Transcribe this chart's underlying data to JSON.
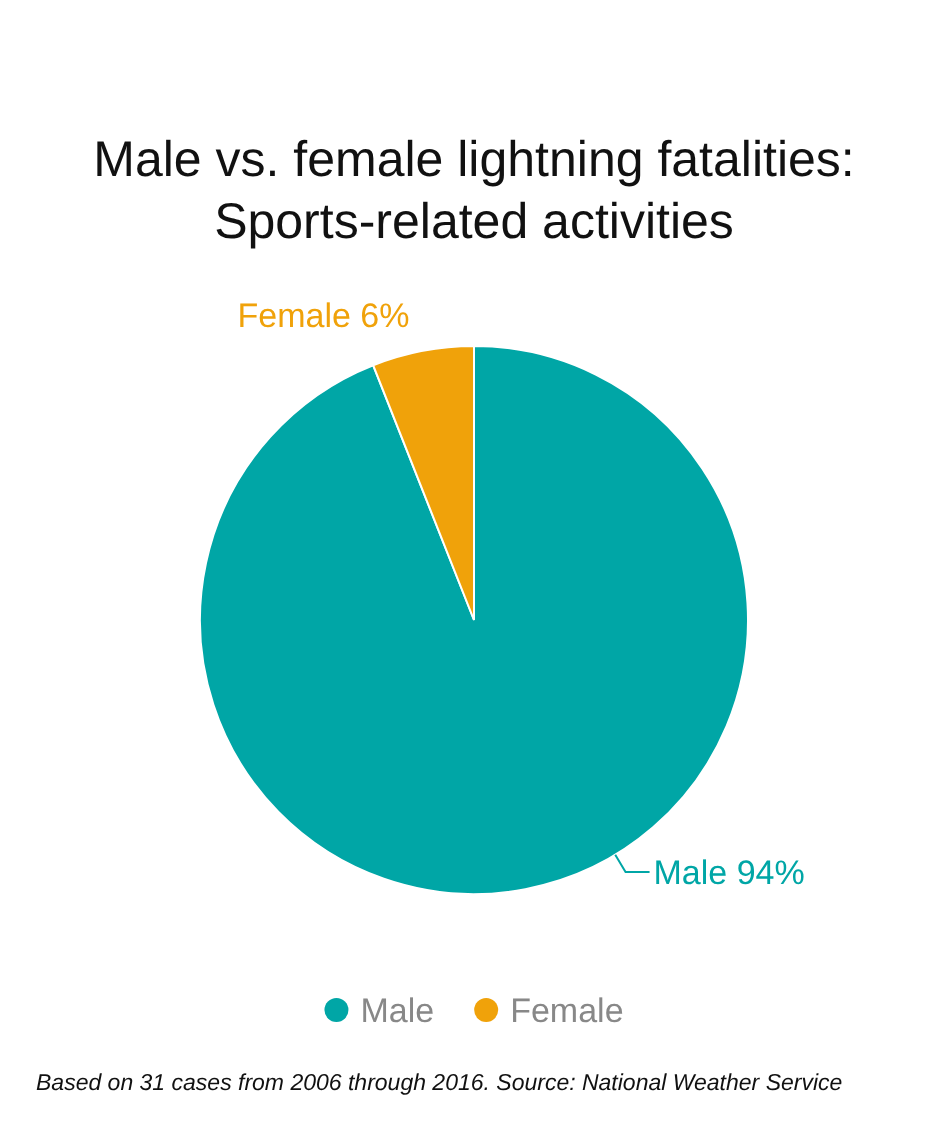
{
  "chart_data": {
    "type": "pie",
    "title": "Male vs. female lightning fatalities: Sports-related activities",
    "categories": [
      "Male",
      "Female"
    ],
    "values": [
      94,
      6
    ],
    "colors": [
      "#00a6a6",
      "#f0a20a"
    ],
    "value_labels": [
      "Male 94%",
      "Female 6%"
    ],
    "legend": "bottom",
    "annotations": [
      "Based on 31 cases from 2006 through 2016. Source: National Weather Service"
    ]
  }
}
